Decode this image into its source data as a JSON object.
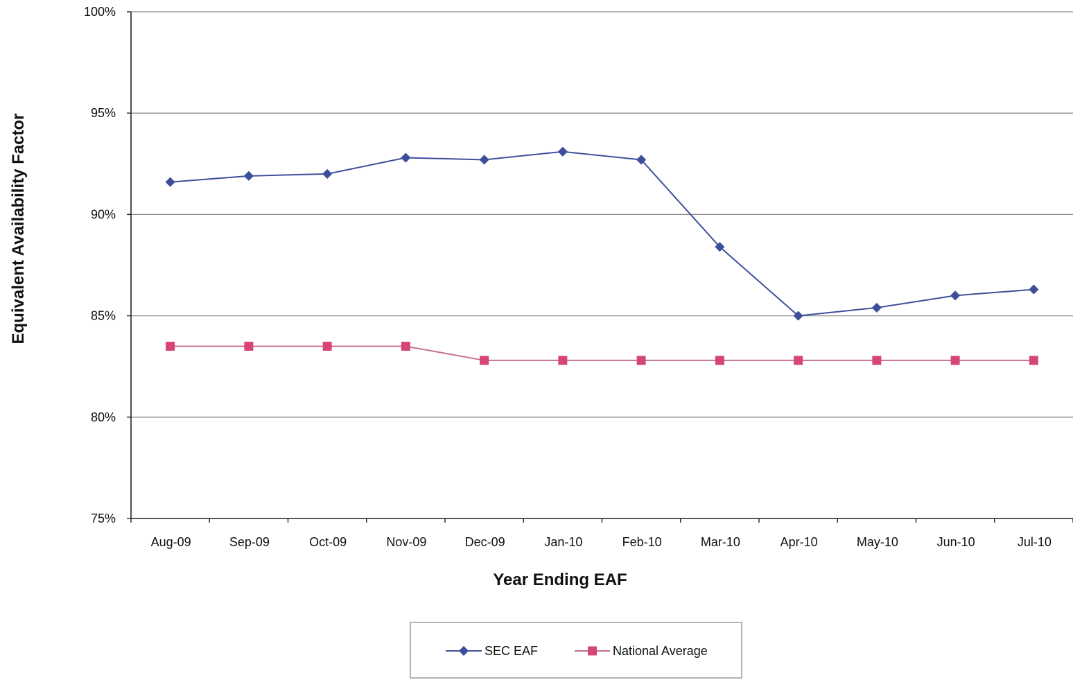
{
  "chart_data": {
    "type": "line",
    "title": "",
    "xlabel": "Year Ending EAF",
    "ylabel": "Equivalent Availability Factor",
    "categories": [
      "Aug-09",
      "Sep-09",
      "Oct-09",
      "Nov-09",
      "Dec-09",
      "Jan-10",
      "Feb-10",
      "Mar-10",
      "Apr-10",
      "May-10",
      "Jun-10",
      "Jul-10"
    ],
    "ylim": [
      75,
      100
    ],
    "yticks": [
      75,
      80,
      85,
      90,
      95,
      100
    ],
    "ytick_labels": [
      "75%",
      "80%",
      "85%",
      "90%",
      "95%",
      "100%"
    ],
    "grid": true,
    "legend_position": "bottom",
    "series": [
      {
        "name": "SEC EAF",
        "color": "#3D4F9A",
        "marker": "diamond",
        "values": [
          91.6,
          91.9,
          92.0,
          92.8,
          92.7,
          93.1,
          92.7,
          88.4,
          85.0,
          85.4,
          86.0,
          86.3
        ]
      },
      {
        "name": "National Average",
        "color": "#D6457A",
        "line_color": "#C8708E",
        "marker": "square",
        "values": [
          83.5,
          83.5,
          83.5,
          83.5,
          82.8,
          82.8,
          82.8,
          82.8,
          82.8,
          82.8,
          82.8,
          82.8
        ]
      }
    ]
  }
}
